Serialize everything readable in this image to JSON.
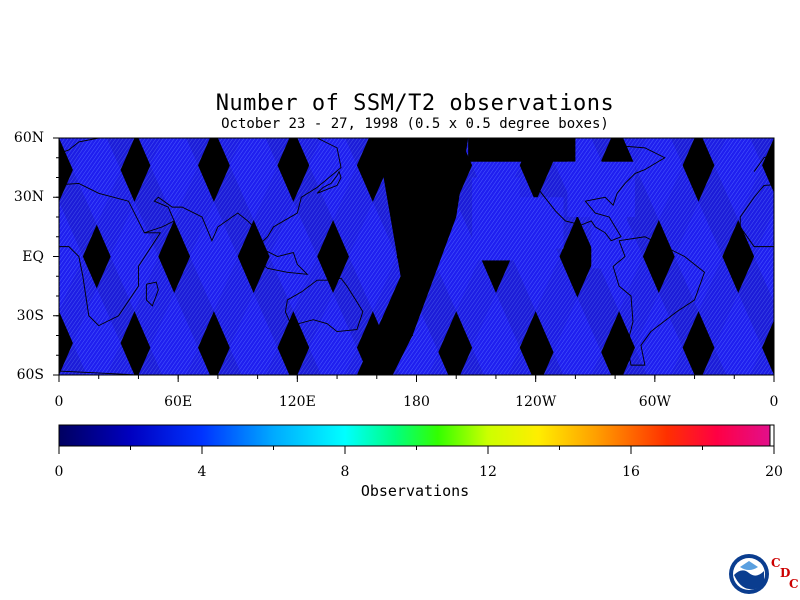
{
  "title": "Number of SSM/T2 observations",
  "subtitle": "October 23 - 27, 1998 (0.5 x 0.5 degree boxes)",
  "map": {
    "lat_ticks": [
      "60N",
      "30N",
      "EQ",
      "30S",
      "60S"
    ],
    "lat_values": [
      60,
      30,
      0,
      -30,
      -60
    ],
    "lon_ticks": [
      "0",
      "60E",
      "120E",
      "180",
      "120W",
      "60W",
      "0"
    ],
    "lon_values": [
      0,
      60,
      120,
      180,
      240,
      300,
      360
    ],
    "lat_range": [
      -60,
      60
    ],
    "lon_range": [
      0,
      360
    ],
    "background_color": "#000000",
    "swath_color": "#1a1aff"
  },
  "colorbar": {
    "label": "Observations",
    "ticks": [
      "0",
      "4",
      "8",
      "12",
      "16",
      "20"
    ],
    "tick_values": [
      0,
      4,
      8,
      12,
      16,
      20
    ],
    "range": [
      0,
      20
    ]
  },
  "logo": {
    "name": "NOAA",
    "cdc_letters": [
      "C",
      "D",
      "C"
    ]
  }
}
